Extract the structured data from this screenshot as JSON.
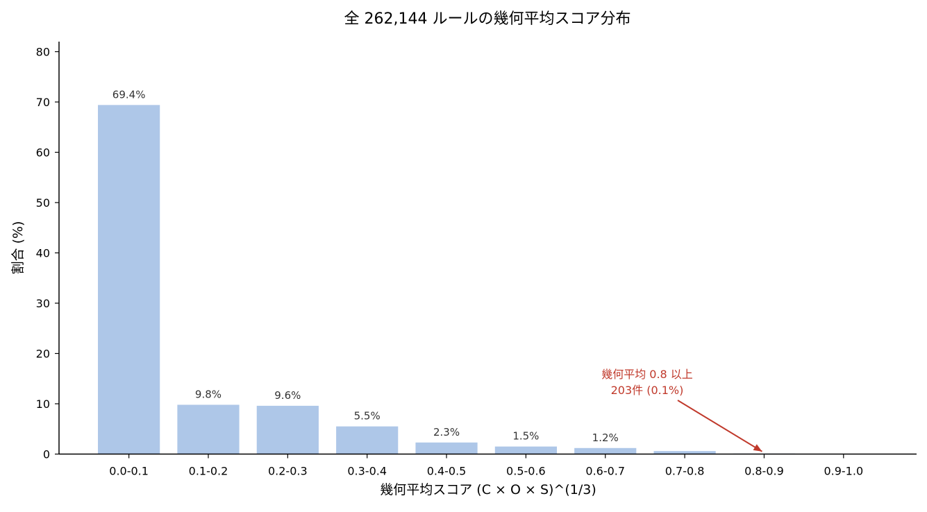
{
  "chart_data": {
    "type": "bar",
    "title": "全 262,144 ルールの幾何平均スコア分布",
    "xlabel": "幾何平均スコア (C × O × S)^(1/3)",
    "ylabel": "割合 (%)",
    "categories": [
      "0.0-0.1",
      "0.1-0.2",
      "0.2-0.3",
      "0.3-0.4",
      "0.4-0.5",
      "0.5-0.6",
      "0.6-0.7",
      "0.7-0.8",
      "0.8-0.9",
      "0.9-1.0"
    ],
    "values": [
      69.4,
      9.8,
      9.6,
      5.5,
      2.3,
      1.5,
      1.2,
      0.6,
      0.1,
      0.0
    ],
    "data_labels": [
      "69.4%",
      "9.8%",
      "9.6%",
      "5.5%",
      "2.3%",
      "1.5%",
      "1.2%",
      "",
      "",
      ""
    ],
    "ylim": [
      0,
      82
    ],
    "yticks": [
      0,
      10,
      20,
      30,
      40,
      50,
      60,
      70,
      80
    ],
    "grid": false,
    "bar_color": "#aec7e8",
    "annotation": {
      "lines": [
        "幾何平均 0.8 以上",
        "203件 (0.1%)"
      ],
      "target_category": "0.8-0.9",
      "target_value": 0.1,
      "color": "#c0392b"
    }
  }
}
